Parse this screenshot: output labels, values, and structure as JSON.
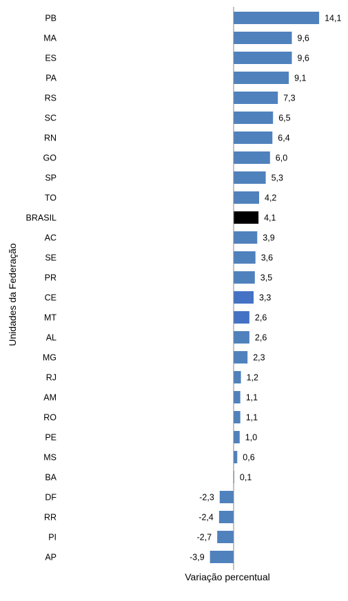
{
  "chart_data": {
    "type": "bar",
    "orientation": "horizontal",
    "xlabel": "Variação percentual",
    "ylabel": "Unidades da Federação",
    "grid": false,
    "legend": "none",
    "xlim": [
      -4.5,
      14.5
    ],
    "categories": [
      "PB",
      "MA",
      "ES",
      "PA",
      "RS",
      "SC",
      "RN",
      "GO",
      "SP",
      "TO",
      "BRASIL",
      "AC",
      "SE",
      "PR",
      "CE",
      "MT",
      "AL",
      "MG",
      "RJ",
      "AM",
      "RO",
      "PE",
      "MS",
      "BA",
      "DF",
      "RR",
      "PI",
      "AP"
    ],
    "values": [
      14.1,
      9.6,
      9.6,
      9.1,
      7.3,
      6.5,
      6.4,
      6.0,
      5.3,
      4.2,
      4.1,
      3.9,
      3.6,
      3.5,
      3.3,
      2.6,
      2.6,
      2.3,
      1.2,
      1.1,
      1.1,
      1.0,
      0.6,
      0.1,
      -2.3,
      -2.4,
      -2.7,
      -3.9
    ],
    "data_labels": [
      "14,1",
      "9,6",
      "9,6",
      "9,1",
      "7,3",
      "6,5",
      "6,4",
      "6,0",
      "5,3",
      "4,2",
      "4,1",
      "3,9",
      "3,6",
      "3,5",
      "3,3",
      "2,6",
      "2,6",
      "2,3",
      "1,2",
      "1,1",
      "1,1",
      "1,0",
      "0,6",
      "0,1",
      "-2,3",
      "-2,4",
      "-2,7",
      "-3,9"
    ],
    "colors": {
      "default": "#4F81BD",
      "highlight": "#000000",
      "alt": "#4472C4"
    },
    "bar_colors": [
      "default",
      "default",
      "default",
      "default",
      "default",
      "default",
      "default",
      "default",
      "default",
      "default",
      "highlight",
      "default",
      "default",
      "default",
      "alt",
      "alt",
      "default",
      "default",
      "default",
      "default",
      "default",
      "default",
      "default",
      "default",
      "default",
      "default",
      "default",
      "default"
    ],
    "axis_color": "#868686"
  }
}
